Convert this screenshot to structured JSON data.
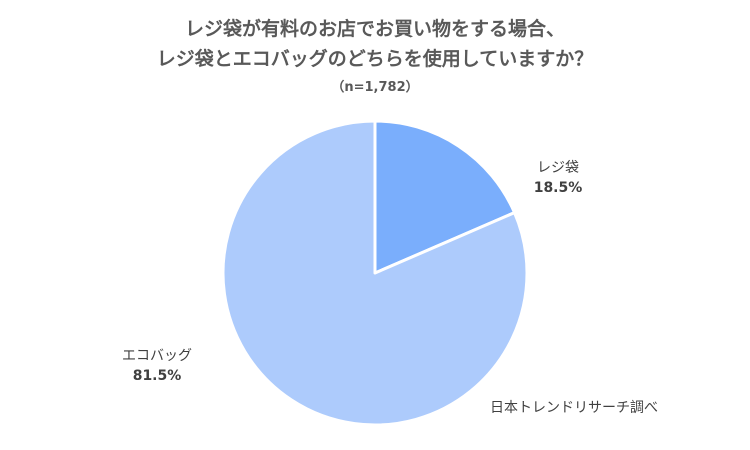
{
  "chart_data": {
    "type": "pie",
    "title": "レジ袋が有料のお店でお買い物をする場合、",
    "title_line2": "レジ袋とエコバッグのどちらを使用していますか？",
    "subtitle": "（n=1,782）",
    "categories": [
      "レジ袋",
      "エコバッグ"
    ],
    "values": [
      18.5,
      81.5
    ],
    "value_labels": [
      "18.5%",
      "81.5%"
    ],
    "colors": [
      "#7aaefc",
      "#adcbfc"
    ],
    "slice_border_color": "#ffffff",
    "source": "日本トレンドリサーチ調べ"
  }
}
